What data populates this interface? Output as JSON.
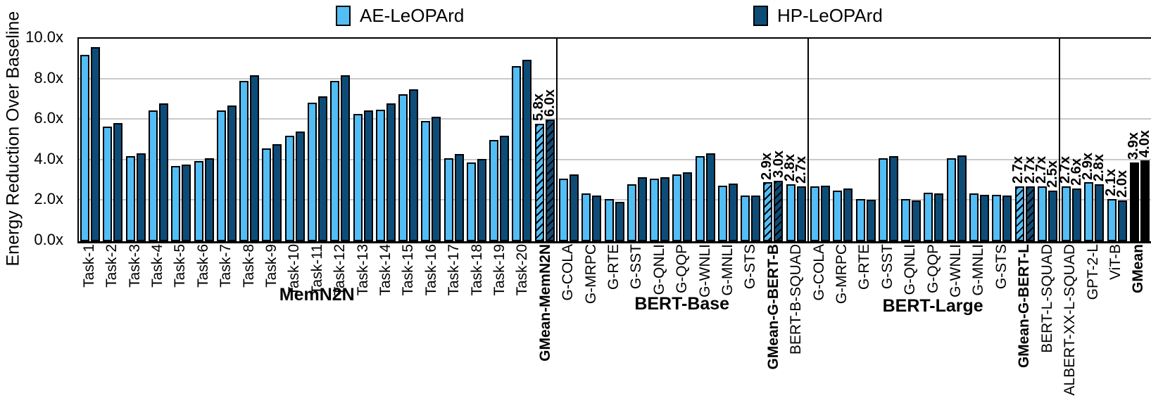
{
  "accent_colors": {
    "ae": "#53bdf5",
    "hp": "#0e4c78",
    "gmean_bar": "#000000",
    "gridline": "#c9c9c9"
  },
  "chart_data": {
    "type": "bar",
    "title": "",
    "ylabel": "Energy Reduction Over Baseline",
    "xlabel": "",
    "ylim": [
      0,
      10
    ],
    "ytick_labels": [
      "0.0x",
      "2.0x",
      "4.0x",
      "6.0x",
      "8.0x",
      "10.0x"
    ],
    "grid": true,
    "legend_position": "top",
    "legend": [
      {
        "name": "AE-LeOPArd",
        "color": "#53bdf5"
      },
      {
        "name": "HP-LeOPArd",
        "color": "#0e4c78"
      }
    ],
    "series_names": [
      "AE-LeOPArd",
      "HP-LeOPArd"
    ],
    "groups": [
      {
        "label": "MemN2N",
        "bars": [
          {
            "name": "Task-1",
            "ae": 9.2,
            "hp": 9.6
          },
          {
            "name": "Task-2",
            "ae": 5.65,
            "hp": 5.85
          },
          {
            "name": "Task-3",
            "ae": 4.2,
            "hp": 4.35
          },
          {
            "name": "Task-4",
            "ae": 6.45,
            "hp": 6.8
          },
          {
            "name": "Task-5",
            "ae": 3.7,
            "hp": 3.8
          },
          {
            "name": "Task-6",
            "ae": 3.95,
            "hp": 4.1
          },
          {
            "name": "Task-7",
            "ae": 6.45,
            "hp": 6.7
          },
          {
            "name": "Task-8",
            "ae": 7.9,
            "hp": 8.2
          },
          {
            "name": "Task-9",
            "ae": 4.6,
            "hp": 4.8
          },
          {
            "name": "Task-10",
            "ae": 5.2,
            "hp": 5.4
          },
          {
            "name": "Task-11",
            "ae": 6.85,
            "hp": 7.15
          },
          {
            "name": "Task-12",
            "ae": 7.9,
            "hp": 8.2
          },
          {
            "name": "Task-13",
            "ae": 6.3,
            "hp": 6.45
          },
          {
            "name": "Task-14",
            "ae": 6.5,
            "hp": 6.8
          },
          {
            "name": "Task-15",
            "ae": 7.25,
            "hp": 7.5
          },
          {
            "name": "Task-16",
            "ae": 5.95,
            "hp": 6.15
          },
          {
            "name": "Task-17",
            "ae": 4.1,
            "hp": 4.3
          },
          {
            "name": "Task-18",
            "ae": 3.9,
            "hp": 4.05
          },
          {
            "name": "Task-19",
            "ae": 5.0,
            "hp": 5.2
          },
          {
            "name": "Task-20",
            "ae": 8.65,
            "hp": 8.95
          },
          {
            "name": "GMean-MemN2N",
            "ae": 5.8,
            "hp": 6.0,
            "hatch": true,
            "bold": true,
            "label_ae": "5.8x",
            "label_hp": "6.0x"
          }
        ]
      },
      {
        "label": "BERT-Base",
        "bars": [
          {
            "name": "G-COLA",
            "ae": 3.1,
            "hp": 3.3
          },
          {
            "name": "G-MRPC",
            "ae": 2.35,
            "hp": 2.25
          },
          {
            "name": "G-RTE",
            "ae": 2.1,
            "hp": 1.95
          },
          {
            "name": "G-SST",
            "ae": 2.8,
            "hp": 3.15
          },
          {
            "name": "G-QNLI",
            "ae": 3.1,
            "hp": 3.15
          },
          {
            "name": "G-QQP",
            "ae": 3.3,
            "hp": 3.4
          },
          {
            "name": "G-WNLI",
            "ae": 4.2,
            "hp": 4.35
          },
          {
            "name": "G-MNLI",
            "ae": 2.75,
            "hp": 2.85
          },
          {
            "name": "G-STS",
            "ae": 2.25,
            "hp": 2.25
          },
          {
            "name": "GMean-G-BERT-B",
            "ae": 2.9,
            "hp": 3.0,
            "hatch": true,
            "bold": true,
            "label_ae": "2.9x",
            "label_hp": "3.0x"
          },
          {
            "name": "BERT-B-SQUAD",
            "ae": 2.8,
            "hp": 2.7,
            "label_ae": "2.8x",
            "label_hp": "2.7x"
          }
        ]
      },
      {
        "label": "BERT-Large",
        "bars": [
          {
            "name": "G-COLA",
            "ae": 2.7,
            "hp": 2.75
          },
          {
            "name": "G-MRPC",
            "ae": 2.5,
            "hp": 2.6
          },
          {
            "name": "G-RTE",
            "ae": 2.1,
            "hp": 2.05
          },
          {
            "name": "G-SST",
            "ae": 4.1,
            "hp": 4.2
          },
          {
            "name": "G-QNLI",
            "ae": 2.1,
            "hp": 2.0
          },
          {
            "name": "G-QQP",
            "ae": 2.4,
            "hp": 2.35
          },
          {
            "name": "G-WNLI",
            "ae": 4.1,
            "hp": 4.25
          },
          {
            "name": "G-MNLI",
            "ae": 2.35,
            "hp": 2.3
          },
          {
            "name": "G-STS",
            "ae": 2.3,
            "hp": 2.25
          },
          {
            "name": "GMean-G-BERT-L",
            "ae": 2.7,
            "hp": 2.7,
            "hatch": true,
            "bold": true,
            "label_ae": "2.7x",
            "label_hp": "2.7x"
          },
          {
            "name": "BERT-L-SQUAD",
            "ae": 2.7,
            "hp": 2.5,
            "label_ae": "2.7x",
            "label_hp": "2.5x"
          }
        ]
      },
      {
        "label": "",
        "bars": [
          {
            "name": "ALBERT-XX-L-SQUAD",
            "ae": 2.7,
            "hp": 2.6,
            "label_ae": "2.7x",
            "label_hp": "2.6x"
          },
          {
            "name": "GPT-2-L",
            "ae": 2.9,
            "hp": 2.8,
            "label_ae": "2.9x",
            "label_hp": "2.8x"
          },
          {
            "name": "ViT-B",
            "ae": 2.1,
            "hp": 2.0,
            "label_ae": "2.1x",
            "label_hp": "2.0x"
          },
          {
            "name": "GMean",
            "ae": 3.9,
            "hp": 4.0,
            "black": true,
            "bold": true,
            "label_ae": "3.9x",
            "label_hp": "4.0x"
          }
        ]
      }
    ]
  }
}
